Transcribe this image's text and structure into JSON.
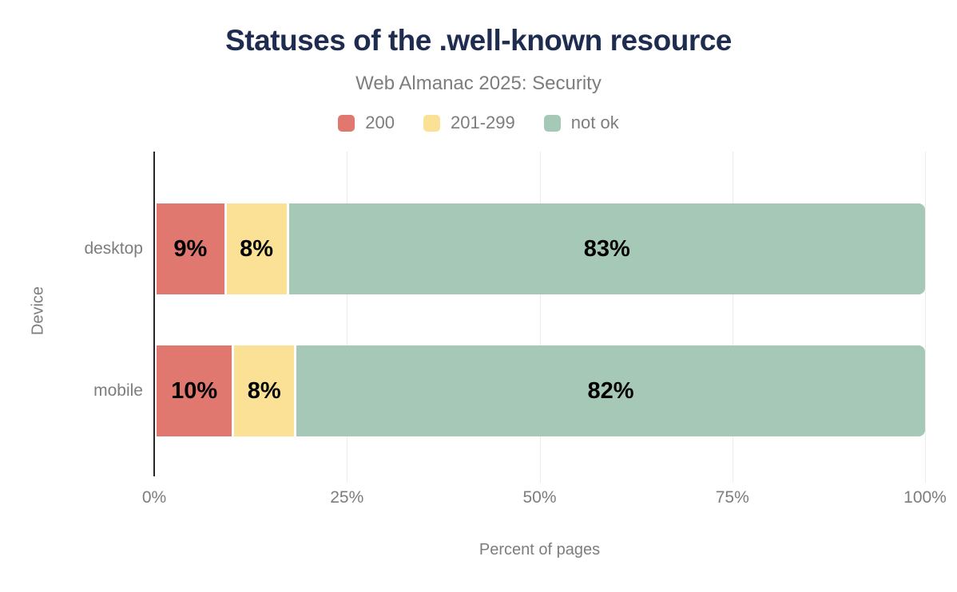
{
  "header": {
    "title": "Statuses of the .well-known resource",
    "subtitle": "Web Almanac 2025: Security"
  },
  "legend": [
    {
      "label": "200",
      "color": "#e0786f"
    },
    {
      "label": "201-299",
      "color": "#fbe195"
    },
    {
      "label": "not ok",
      "color": "#a6c8b7"
    }
  ],
  "chart_data": {
    "type": "bar",
    "orientation": "horizontal",
    "stacked": true,
    "title": "Statuses of the .well-known resource",
    "subtitle": "Web Almanac 2025: Security",
    "categories": [
      "desktop",
      "mobile"
    ],
    "series": [
      {
        "name": "200",
        "color": "#e0786f",
        "values": [
          9,
          10
        ]
      },
      {
        "name": "201-299",
        "color": "#fbe195",
        "values": [
          8,
          8
        ]
      },
      {
        "name": "not ok",
        "color": "#a6c8b7",
        "values": [
          83,
          82
        ]
      }
    ],
    "value_labels": [
      [
        "9%",
        "8%",
        "83%"
      ],
      [
        "10%",
        "8%",
        "82%"
      ]
    ],
    "xlabel": "Percent of pages",
    "ylabel": "Device",
    "x_ticks": [
      "0%",
      "25%",
      "50%",
      "75%",
      "100%"
    ],
    "xlim": [
      0,
      100
    ],
    "grid": "vertical-light",
    "legend_position": "top-center"
  },
  "colors": {
    "title_text": "#1e2c4f",
    "muted_text": "#7d7d7d",
    "bar_value_text": "#000000",
    "axis_line": "#262626",
    "gridline": "#ececec",
    "background": "#ffffff"
  }
}
